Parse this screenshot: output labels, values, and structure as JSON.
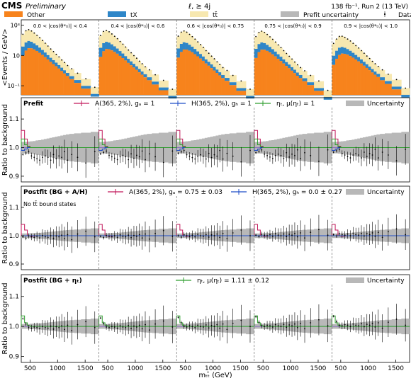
{
  "header": {
    "experiment": "CMS",
    "status": "Preliminary",
    "channel": "ℓ, ≥ 4j",
    "lumi": "138 fb⁻¹, Run 2 (13 TeV)"
  },
  "colors": {
    "other": "#f7831c",
    "tX": "#2e86c8",
    "ttbar": "#f7e8b0",
    "uncertainty": "#b8b8b8",
    "A": "#c2185b",
    "H": "#1f4ec7",
    "eta": "#2e9e2e",
    "reference": "#7e57c2"
  },
  "chart_data": [
    {
      "panel": "main",
      "type": "area",
      "ylabel": "<Events / GeV>",
      "yscale": "log",
      "ytick_labels": [
        "10⁻¹",
        "10",
        "10³"
      ],
      "legend": [
        {
          "key": "other",
          "label": "Other",
          "marker": "box"
        },
        {
          "key": "tX",
          "label": "tX",
          "marker": "box"
        },
        {
          "key": "ttbar",
          "label": "tt̄",
          "marker": "box"
        },
        {
          "key": "uncertainty",
          "label": "Prefit uncertainty",
          "marker": "box"
        },
        {
          "key": "data",
          "label": "Data",
          "marker": "point"
        }
      ],
      "bins": [
        "0.0 < |cos(θ*ₜₗ)| < 0.4",
        "0.4 < |cos(θ*ₜₗ)| < 0.6",
        "0.6 < |cos(θ*ₜₗ)| < 0.75",
        "0.75 < |cos(θ*ₜₗ)| < 0.9",
        "0.9 < |cos(θ*ₜₗ)| < 1.0"
      ],
      "x_mtt": [
        375,
        425,
        475,
        525,
        575,
        625,
        675,
        725,
        775,
        825,
        875,
        925,
        975,
        1025,
        1075,
        1125,
        1175,
        1250,
        1350,
        1500,
        1700
      ],
      "ttbar_share": [
        0.84,
        0.83,
        0.82,
        0.81,
        0.8,
        0.79,
        0.78,
        0.77,
        0.76,
        0.75,
        0.74,
        0.73,
        0.72,
        0.71,
        0.7,
        0.69,
        0.68,
        0.67,
        0.66,
        0.65,
        0.64
      ],
      "tX_share": [
        0.12,
        0.12,
        0.12,
        0.12,
        0.12,
        0.12,
        0.12,
        0.12,
        0.12,
        0.12,
        0.12,
        0.12,
        0.12,
        0.12,
        0.12,
        0.12,
        0.12,
        0.12,
        0.12,
        0.12,
        0.12
      ],
      "total_events_per_gev": [
        [
          240,
          420,
          500,
          420,
          310,
          220,
          150,
          100,
          65,
          42,
          27,
          18,
          12,
          8,
          5.2,
          3.4,
          2.2,
          1.3,
          0.7,
          0.28,
          0.08
        ],
        [
          200,
          380,
          440,
          370,
          270,
          190,
          130,
          85,
          56,
          36,
          23,
          15,
          10,
          6.6,
          4.3,
          2.8,
          1.8,
          1.1,
          0.55,
          0.22,
          0.06
        ],
        [
          180,
          340,
          410,
          350,
          255,
          180,
          122,
          80,
          52,
          34,
          21,
          14,
          9.2,
          6,
          3.9,
          2.5,
          1.6,
          1,
          0.5,
          0.2,
          0.06
        ],
        [
          170,
          330,
          400,
          340,
          250,
          175,
          118,
          78,
          50,
          33,
          21,
          13.5,
          9,
          5.8,
          3.8,
          2.4,
          1.6,
          0.95,
          0.5,
          0.2,
          0.05
        ],
        [
          60,
          120,
          180,
          190,
          160,
          125,
          92,
          65,
          45,
          31,
          21,
          14,
          9.4,
          6.3,
          4.2,
          2.8,
          1.9,
          1.1,
          0.6,
          0.25,
          0.07
        ]
      ],
      "data_to_prediction_ratio": [
        1.04,
        1.01,
        1.0,
        0.98,
        0.97,
        0.97,
        0.98,
        0.98,
        0.99,
        1.0,
        0.99,
        1.0,
        0.98,
        1.0,
        0.97,
        1.01,
        0.99,
        1.02,
        0.96,
        1.03,
        0.99
      ]
    },
    {
      "panel": "prefit",
      "type": "line",
      "label": "Prefit",
      "ylabel": "Ratio to background",
      "ylim": [
        0.88,
        1.13
      ],
      "yticks": [
        0.9,
        1.0,
        1.1
      ],
      "legend": [
        {
          "key": "A",
          "label": "A(365, 2%), g_A = 1",
          "marker": "line"
        },
        {
          "key": "H",
          "label": "H(365, 2%), g_H = 1",
          "marker": "line"
        },
        {
          "key": "eta",
          "label": "η_t, μ(η_t) = 1",
          "marker": "line"
        },
        {
          "key": "uncertainty",
          "label": "Uncertainty",
          "marker": "box"
        }
      ],
      "uncertainty_halfwidth": [
        0.02,
        0.02,
        0.021,
        0.022,
        0.023,
        0.025,
        0.026,
        0.028,
        0.03,
        0.032,
        0.034,
        0.036,
        0.038,
        0.04,
        0.042,
        0.044,
        0.046,
        0.048,
        0.05,
        0.052,
        0.055
      ],
      "data_ratio": [
        0.98,
        0.985,
        0.99,
        0.975,
        0.97,
        0.965,
        0.96,
        0.97,
        0.975,
        0.97,
        0.96,
        0.98,
        0.965,
        0.975,
        0.97,
        0.99,
        0.96,
        0.98,
        0.97,
        0.95,
        0.99
      ],
      "signals": {
        "A": [
          1.06,
          1.03,
          1.005,
          1.0,
          1.0,
          1.0,
          1.0,
          1.0,
          1.0,
          1.0,
          1.0,
          1.0,
          1.0,
          1.0,
          1.0,
          1.0,
          1.0,
          1.0,
          1.0,
          1.0,
          1.0
        ],
        "H": [
          0.99,
          0.995,
          1.0,
          1.0,
          1.0,
          1.0,
          1.0,
          1.0,
          1.0,
          1.0,
          1.0,
          1.0,
          1.0,
          1.0,
          1.0,
          1.0,
          1.0,
          1.0,
          1.0,
          1.0,
          1.0
        ],
        "eta": [
          1.03,
          1.01,
          1.003,
          1.0,
          1.0,
          1.0,
          1.0,
          1.0,
          1.0,
          1.0,
          1.0,
          1.0,
          1.0,
          1.0,
          1.0,
          1.0,
          1.0,
          1.0,
          1.0,
          1.0,
          1.0
        ]
      }
    },
    {
      "panel": "postfit_AH",
      "type": "line",
      "label": "Postfit (BG + A/H)",
      "annotation": "No tt̄ bound states",
      "ylabel": "Ratio to background",
      "ylim": [
        0.88,
        1.13
      ],
      "yticks": [
        0.9,
        1.0,
        1.1
      ],
      "legend": [
        {
          "key": "A",
          "label": "A(365, 2%), g_A = 0.75 ± 0.03",
          "marker": "line"
        },
        {
          "key": "H",
          "label": "H(365, 2%), g_H = 0.0 ± 0.27",
          "marker": "line"
        },
        {
          "key": "uncertainty",
          "label": "Uncertainty",
          "marker": "box"
        }
      ],
      "uncertainty_halfwidth": [
        0.008,
        0.008,
        0.008,
        0.009,
        0.009,
        0.01,
        0.01,
        0.011,
        0.012,
        0.013,
        0.014,
        0.015,
        0.016,
        0.017,
        0.018,
        0.019,
        0.02,
        0.021,
        0.022,
        0.024,
        0.026
      ],
      "data_ratio": [
        1.0,
        0.995,
        1.003,
        1.0,
        0.998,
        1.002,
        0.996,
        1.005,
        1.0,
        0.998,
        1.004,
        0.995,
        1.003,
        1.0,
        1.006,
        0.994,
        1.008,
        0.99,
        1.01,
        1.02,
        1.0
      ],
      "signals": {
        "A": [
          1.04,
          1.02,
          1.0,
          0.998,
          0.999,
          1.0,
          1.0,
          1.0,
          1.0,
          1.0,
          1.0,
          1.0,
          1.0,
          1.0,
          1.0,
          1.0,
          1.0,
          1.0,
          1.0,
          1.0,
          1.0
        ],
        "H": [
          1.0,
          1.0,
          1.0,
          1.0,
          1.0,
          1.0,
          1.0,
          1.0,
          1.0,
          1.0,
          1.0,
          1.0,
          1.0,
          1.0,
          1.0,
          1.0,
          1.0,
          1.0,
          1.0,
          1.0,
          1.0
        ]
      }
    },
    {
      "panel": "postfit_eta",
      "type": "line",
      "label": "Postfit (BG + η_t)",
      "ylabel": "Ratio to background",
      "ylim": [
        0.88,
        1.13
      ],
      "yticks": [
        0.9,
        1.0,
        1.1
      ],
      "xlabel": "m_tt̄ (GeV)",
      "xticks": [
        500,
        1000,
        1500
      ],
      "xlim": [
        340,
        1750
      ],
      "legend": [
        {
          "key": "eta",
          "label": "η_t, μ(η_t) = 1.11 ± 0.12",
          "marker": "line"
        },
        {
          "key": "uncertainty",
          "label": "Uncertainty",
          "marker": "box"
        }
      ],
      "uncertainty_halfwidth": [
        0.008,
        0.008,
        0.008,
        0.009,
        0.009,
        0.01,
        0.01,
        0.011,
        0.012,
        0.013,
        0.014,
        0.015,
        0.016,
        0.017,
        0.018,
        0.019,
        0.02,
        0.021,
        0.022,
        0.024,
        0.026
      ],
      "data_ratio": [
        1.03,
        1.012,
        1.0,
        0.998,
        1.002,
        1.0,
        0.996,
        1.004,
        1.0,
        0.998,
        1.005,
        0.995,
        1.003,
        1.0,
        1.006,
        0.994,
        1.008,
        0.99,
        1.01,
        1.02,
        1.0
      ],
      "signals": {
        "eta": [
          1.035,
          1.012,
          1.003,
          1.0,
          1.0,
          1.0,
          1.0,
          1.0,
          1.0,
          1.0,
          1.0,
          1.0,
          1.0,
          1.0,
          1.0,
          1.0,
          1.0,
          1.0,
          1.0,
          1.0,
          1.0
        ]
      }
    }
  ]
}
